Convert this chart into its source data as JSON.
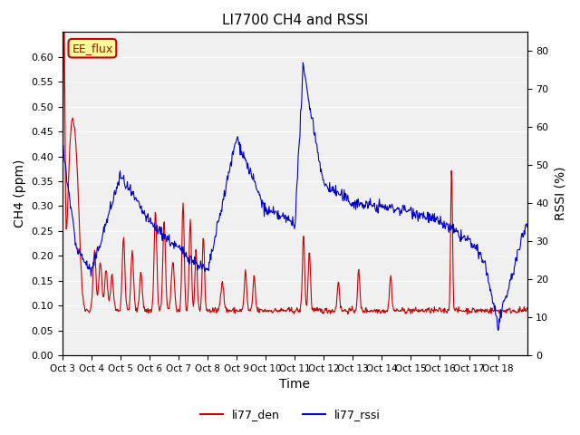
{
  "title": "LI7700 CH4 and RSSI",
  "xlabel": "Time",
  "ylabel_left": "CH4 (ppm)",
  "ylabel_right": "RSSI (%)",
  "ylim_left": [
    0.0,
    0.65
  ],
  "ylim_right": [
    0,
    85
  ],
  "yticks_left": [
    0.0,
    0.05,
    0.1,
    0.15,
    0.2,
    0.25,
    0.3,
    0.35,
    0.4,
    0.45,
    0.5,
    0.55,
    0.6
  ],
  "yticks_right": [
    0,
    10,
    20,
    30,
    40,
    50,
    60,
    70,
    80
  ],
  "color_ch4": "#cc0000",
  "color_rssi": "#0000cc",
  "annotation_text": "EE_flux",
  "annotation_color": "#cc0000",
  "annotation_bg": "#ffff99",
  "legend_labels": [
    "li77_den",
    "li77_rssi"
  ],
  "xtick_labels": [
    "Oct 3",
    "Oct 4",
    "Oct 5",
    "Oct 6",
    "Oct 7",
    "Oct 8",
    "Oct 9",
    "Oct 10",
    "Oct 11",
    "Oct 12",
    "Oct 13",
    "Oct 14",
    "Oct 15",
    "Oct 16",
    "Oct 17",
    "Oct 18"
  ],
  "background_color": "#f0f0f0"
}
